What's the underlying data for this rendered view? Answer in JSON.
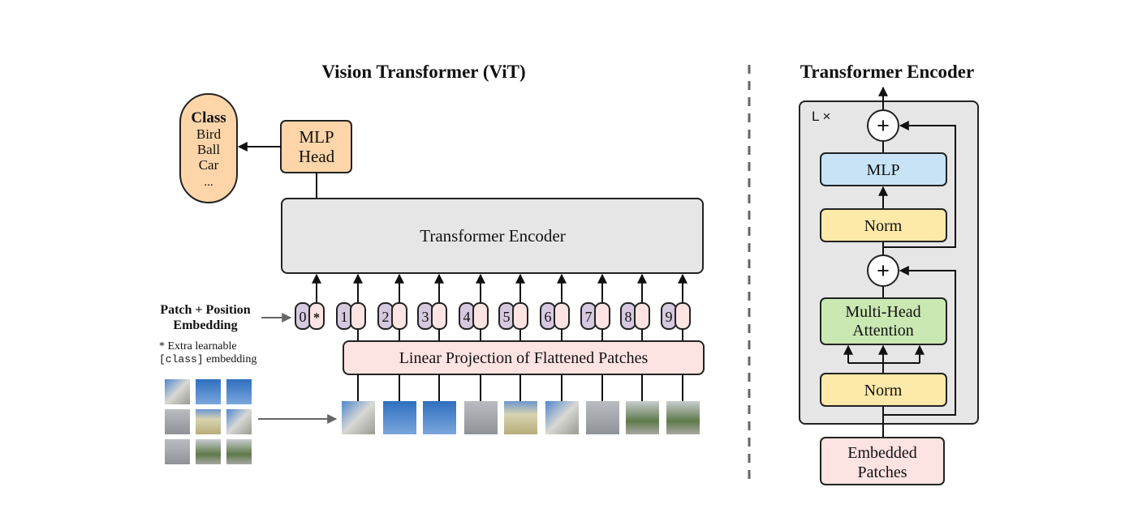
{
  "left": {
    "title": "Vision Transformer (ViT)",
    "class_box": {
      "heading": "Class",
      "items": [
        "Bird",
        "Ball",
        "Car",
        "..."
      ]
    },
    "mlp_head": [
      "MLP",
      "Head"
    ],
    "encoder_label": "Transformer Encoder",
    "embedding_label": [
      "Patch + Position",
      "Embedding"
    ],
    "note_line1": "* Extra learnable",
    "note_code": "[class]",
    "note_line2_rest": " embedding",
    "tokens": [
      "0",
      "1",
      "2",
      "3",
      "4",
      "5",
      "6",
      "7",
      "8",
      "9"
    ],
    "class_token_marker": "*",
    "projection_label": "Linear Projection of Flattened Patches"
  },
  "right": {
    "title": "Transformer Encoder",
    "repeat_label": "L ×",
    "mlp": "MLP",
    "norm_top": "Norm",
    "attention": [
      "Multi-Head",
      "Attention"
    ],
    "norm_bottom": "Norm",
    "input": [
      "Embedded",
      "Patches"
    ],
    "plus": "+"
  },
  "colors": {
    "class_fill": "#fdd5a9",
    "encoder_fill": "#e6e6e6",
    "position_fill": "#d5c9df",
    "patch_embed_fill": "#fde3e1",
    "mlp_fill": "#c7e3f5",
    "norm_fill": "#fde9a8",
    "attention_fill": "#c9e8b2"
  }
}
